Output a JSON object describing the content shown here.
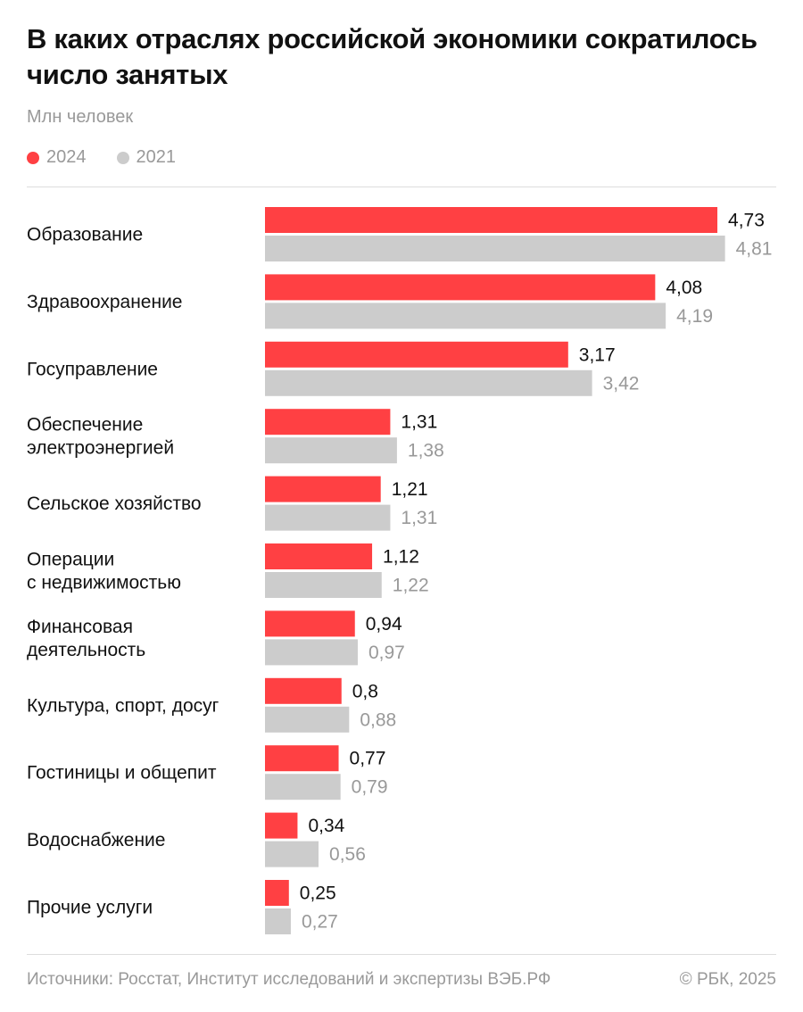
{
  "chart_data": {
    "type": "bar",
    "orientation": "horizontal",
    "title": "В каких отраслях российской экономики сократилось число занятых",
    "subtitle": "Млн человек",
    "legend_placement": "top-left",
    "grid": false,
    "categories": [
      "Образование",
      "Здравоохранение",
      "Госуправление",
      "Обеспечение электроэнергией",
      "Сельское хозяйство",
      "Операции с недвижимостью",
      "Финансовая деятельность",
      "Культура, спорт, досуг",
      "Гостиницы и общепит",
      "Водоснабжение",
      "Прочие услуги"
    ],
    "category_lines": [
      [
        "Образование"
      ],
      [
        "Здравоохранение"
      ],
      [
        "Госуправление"
      ],
      [
        "Обеспечение",
        "электроэнергией"
      ],
      [
        "Сельское хозяйство"
      ],
      [
        "Операции",
        "с недвижимостью"
      ],
      [
        "Финансовая",
        "деятельность"
      ],
      [
        "Культура, спорт, досуг"
      ],
      [
        "Гостиницы и общепит"
      ],
      [
        "Водоснабжение"
      ],
      [
        "Прочие услуги"
      ]
    ],
    "series": [
      {
        "name": "2024",
        "color": "#FF4043",
        "values": [
          4.73,
          4.08,
          3.17,
          1.31,
          1.21,
          1.12,
          0.94,
          0.8,
          0.77,
          0.34,
          0.25
        ],
        "labels": [
          "4,73",
          "4,08",
          "3,17",
          "1,31",
          "1,21",
          "1,12",
          "0,94",
          "0,8",
          "0,77",
          "0,34",
          "0,25"
        ]
      },
      {
        "name": "2021",
        "color": "#CCCCCC",
        "values": [
          4.81,
          4.19,
          3.42,
          1.38,
          1.31,
          1.22,
          0.97,
          0.88,
          0.79,
          0.56,
          0.27
        ],
        "labels": [
          "4,81",
          "4,19",
          "3,42",
          "1,38",
          "1,31",
          "1,22",
          "0,97",
          "0,88",
          "0,79",
          "0,56",
          "0,27"
        ]
      }
    ],
    "xlim": [
      0,
      4.81
    ]
  },
  "footer": {
    "source": "Источники: Росстат, Институт исследований и экспертизы ВЭБ.РФ",
    "copyright": "© РБК, 2025"
  }
}
